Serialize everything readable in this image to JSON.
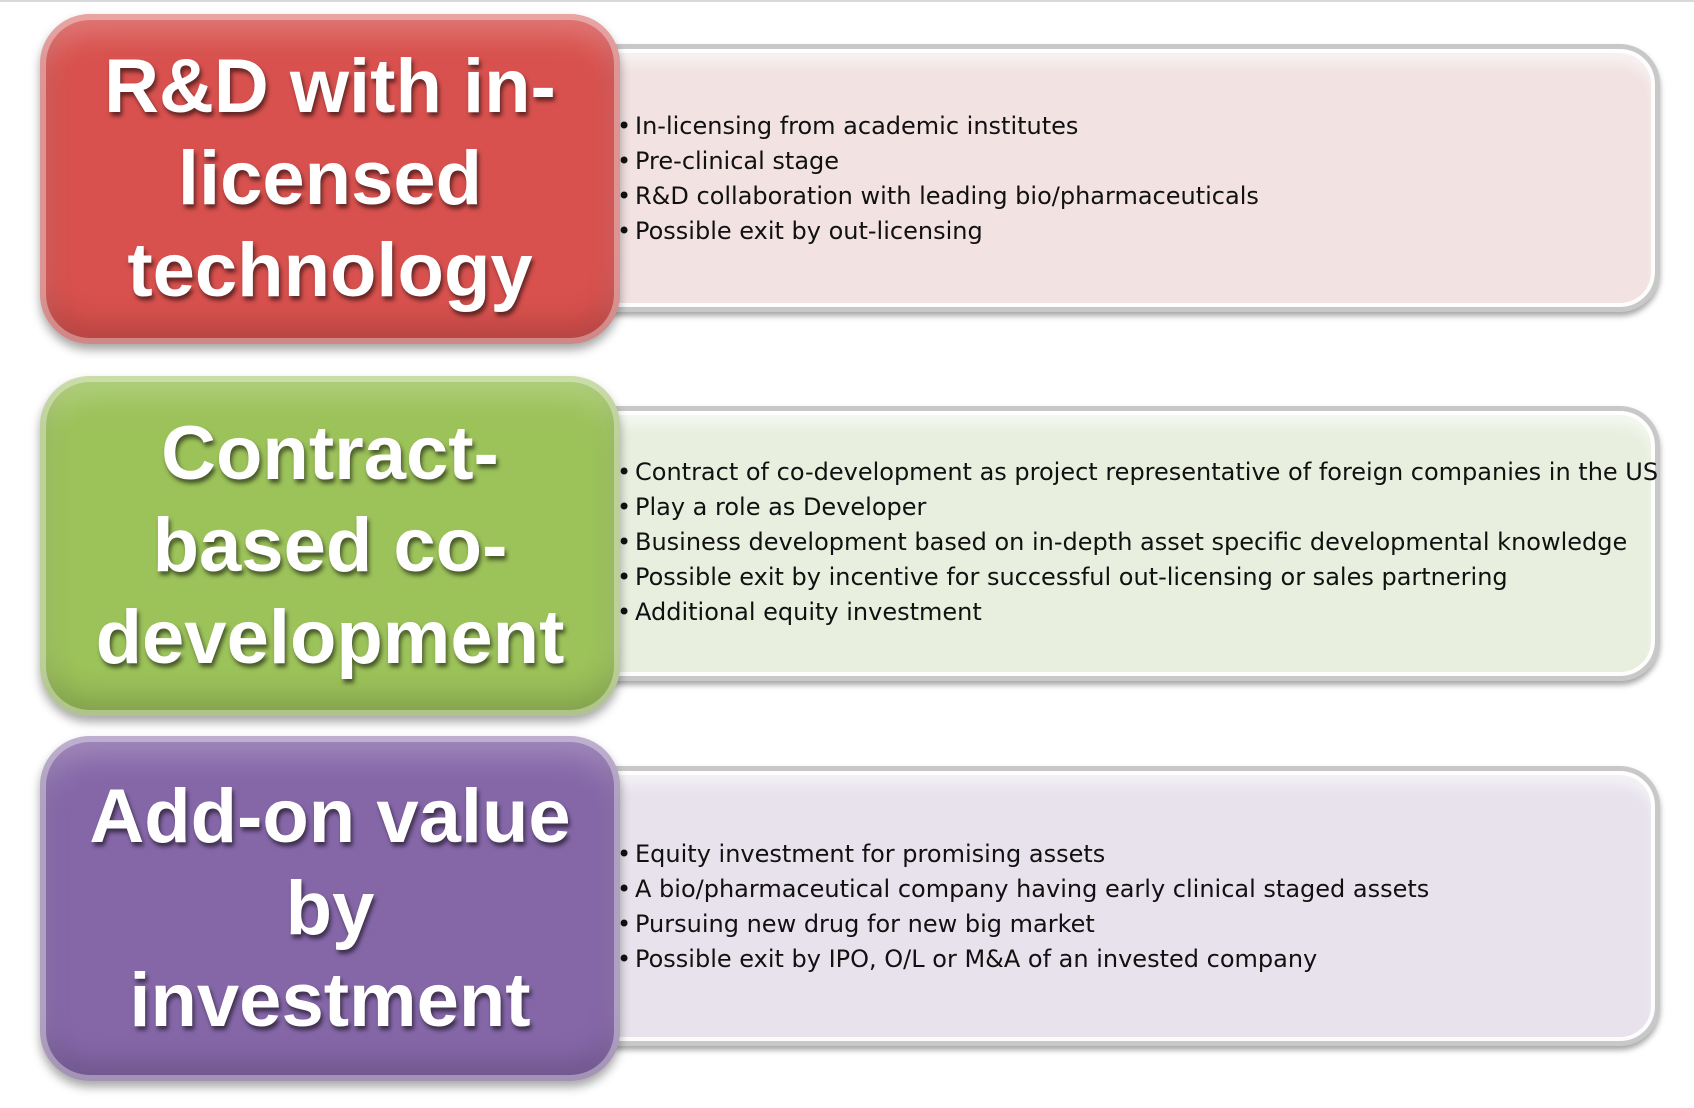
{
  "rows": [
    {
      "title": "R&D with in-\nlicensed\ntechnology",
      "block_color": "#d8514e",
      "detail_color": "#f2e2e2",
      "bullets": [
        "In-licensing from academic institutes",
        "Pre-clinical stage",
        "R&D collaboration with leading bio/pharmaceuticals",
        "Possible exit by out-licensing"
      ]
    },
    {
      "title": "Contract-\nbased co-\ndevelopment",
      "block_color": "#9cc25a",
      "detail_color": "#e8efdf",
      "bullets": [
        "Contract of co-development as project representative of foreign companies in the US",
        "Play a role as Developer",
        "Business development based on in-depth asset specific developmental knowledge",
        "Possible exit by incentive for successful out-licensing or sales partnering",
        "Additional equity investment"
      ]
    },
    {
      "title": "Add-on value\nby\ninvestment",
      "block_color": "#8567a8",
      "detail_color": "#e7e2ec",
      "bullets": [
        "Equity investment for promising assets",
        "A bio/pharmaceutical company having early clinical staged assets",
        "Pursuing new drug for new big market",
        "Possible exit by IPO, O/L or M&A of an invested company"
      ]
    }
  ]
}
